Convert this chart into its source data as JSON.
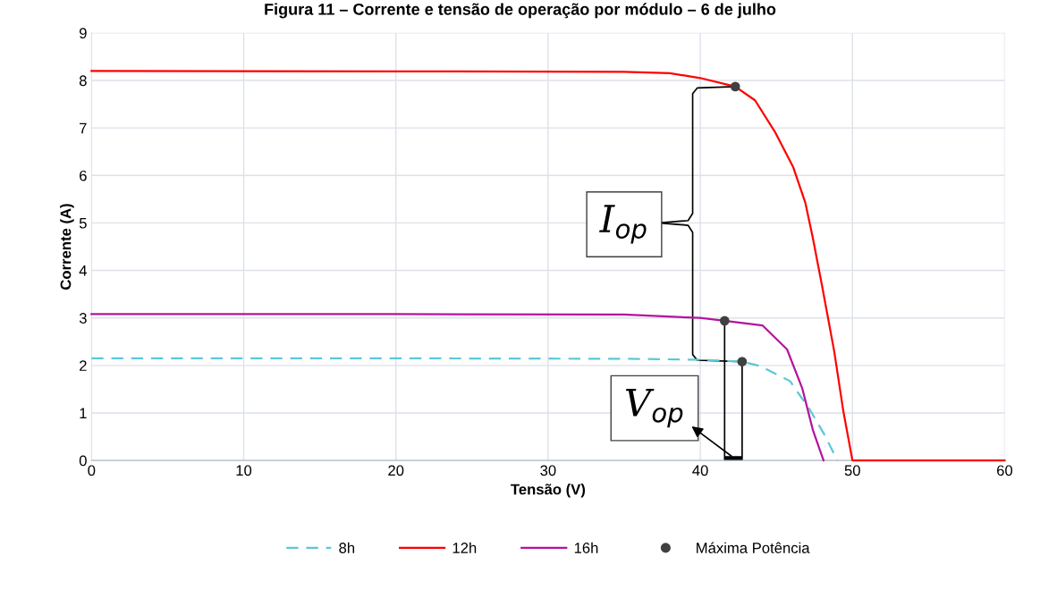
{
  "chart_data": {
    "type": "line",
    "title": "Figura 11 – Corrente e tensão de operação por módulo – 6 de julho",
    "xlabel": "Tensão (V)",
    "ylabel": "Corrente (A)",
    "xlim": [
      0,
      60
    ],
    "xticks": [
      0,
      10,
      20,
      30,
      40,
      50,
      60
    ],
    "ylim": [
      0,
      9
    ],
    "yticks": [
      0,
      1,
      2,
      3,
      4,
      5,
      6,
      7,
      8,
      9
    ],
    "grid": true,
    "legend": "bottom",
    "annotations": [
      {
        "text": "I$_{op}$",
        "x": 42.3,
        "y": 7.87
      },
      "V$_{op}$"
    ],
    "series": [
      {
        "name": "8h",
        "color": "#5bc8d8",
        "line_style": "dashed",
        "x": [
          0,
          20,
          35,
          40,
          42.75,
          43.9,
          45.9,
          47.2,
          48.2,
          49.0
        ],
        "values": [
          2.15,
          2.15,
          2.14,
          2.12,
          2.08,
          1.99,
          1.67,
          1.07,
          0.52,
          0
        ]
      },
      {
        "name": "12h",
        "color": "#ff0000",
        "line_style": "solid",
        "x": [
          0,
          20,
          35,
          38,
          40,
          42.3,
          43.6,
          44.9,
          46.1,
          46.9,
          47.4,
          48.0,
          48.8,
          49.4,
          50.0,
          60
        ],
        "values": [
          8.2,
          8.19,
          8.18,
          8.15,
          8.05,
          7.87,
          7.58,
          6.92,
          6.18,
          5.43,
          4.68,
          3.68,
          2.3,
          1.04,
          0,
          0
        ]
      },
      {
        "name": "16h",
        "color": "#b4149e",
        "line_style": "solid",
        "x": [
          0,
          20,
          35,
          40,
          41.6,
          44.1,
          45.7,
          46.7,
          47.4,
          48.1
        ],
        "values": [
          3.08,
          3.08,
          3.07,
          3.0,
          2.94,
          2.84,
          2.34,
          1.52,
          0.64,
          0
        ]
      },
      {
        "name": "Máxima Potência",
        "type": "scatter",
        "marker": "circle",
        "color": "#404040",
        "x": [
          42.3,
          41.6,
          42.75
        ],
        "values": [
          7.87,
          2.94,
          2.08
        ]
      }
    ]
  }
}
